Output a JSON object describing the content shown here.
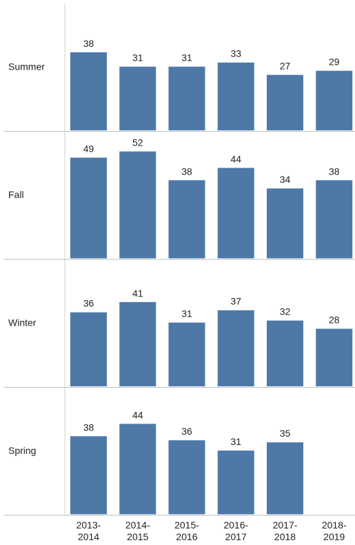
{
  "chart_data": {
    "type": "bar",
    "layout": "small-multiples-rows",
    "categories": [
      "2013-2014",
      "2014-2015",
      "2015-2016",
      "2016-2017",
      "2017-2018",
      "2018-2019"
    ],
    "tick_labels": [
      [
        "2013-",
        "2014"
      ],
      [
        "2014-",
        "2015"
      ],
      [
        "2015-",
        "2016"
      ],
      [
        "2016-",
        "2017"
      ],
      [
        "2017-",
        "2018"
      ],
      [
        "2018-",
        "2019"
      ]
    ],
    "series": [
      {
        "name": "Summer",
        "values": [
          38,
          31,
          31,
          33,
          27,
          29
        ]
      },
      {
        "name": "Fall",
        "values": [
          49,
          52,
          38,
          44,
          34,
          38
        ]
      },
      {
        "name": "Winter",
        "values": [
          36,
          41,
          31,
          37,
          32,
          28
        ]
      },
      {
        "name": "Spring",
        "values": [
          38,
          44,
          36,
          31,
          35,
          null
        ]
      }
    ],
    "ylim": [
      0,
      65
    ],
    "bar_color": "#4e79a7",
    "grid": false,
    "legend": "none",
    "title": "",
    "xlabel": "",
    "ylabel": ""
  }
}
